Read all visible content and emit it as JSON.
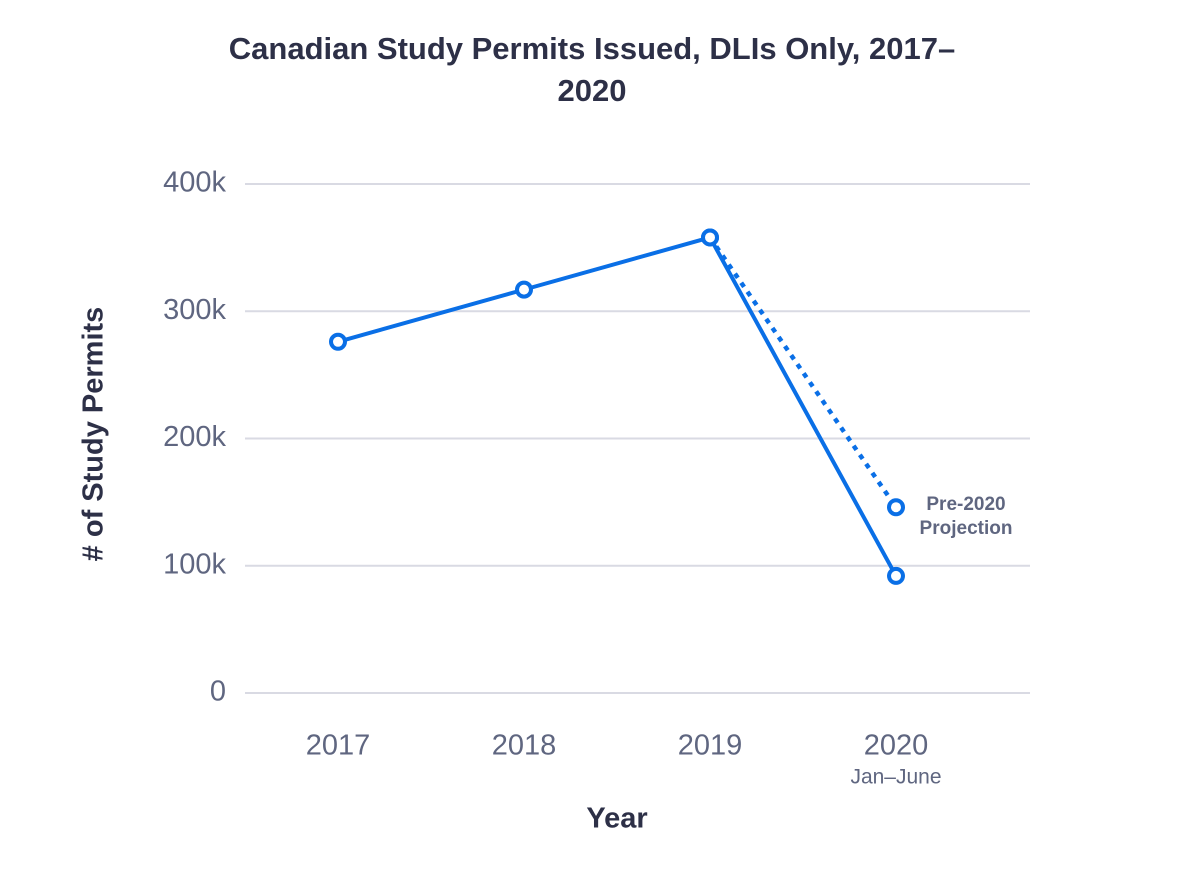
{
  "chart_data": {
    "type": "line",
    "title": "Canadian Study Permits Issued, DLIs Only, 2017–2020",
    "x_label": "Year",
    "y_label": "# of Study Permits",
    "categories": [
      "2017",
      "2018",
      "2019",
      "2020"
    ],
    "category_sublabels": [
      null,
      null,
      null,
      "Jan–June"
    ],
    "series": [
      {
        "color": "#0a6fe6",
        "style": "solid",
        "values": [
          276000,
          317000,
          358000,
          92000
        ]
      },
      {
        "name": "Pre-2020 Projection",
        "color": "#0a6fe6",
        "style": "dotted",
        "values": [
          null,
          null,
          358000,
          146000
        ]
      }
    ],
    "ylim": [
      0,
      400000
    ],
    "yticks": [
      0,
      {
        "value": 100000,
        "label": "100k"
      },
      {
        "value": 200000,
        "label": "200k"
      },
      {
        "value": 300000,
        "label": "300k"
      },
      {
        "value": 400000,
        "label": "400k"
      }
    ],
    "grid": true
  }
}
